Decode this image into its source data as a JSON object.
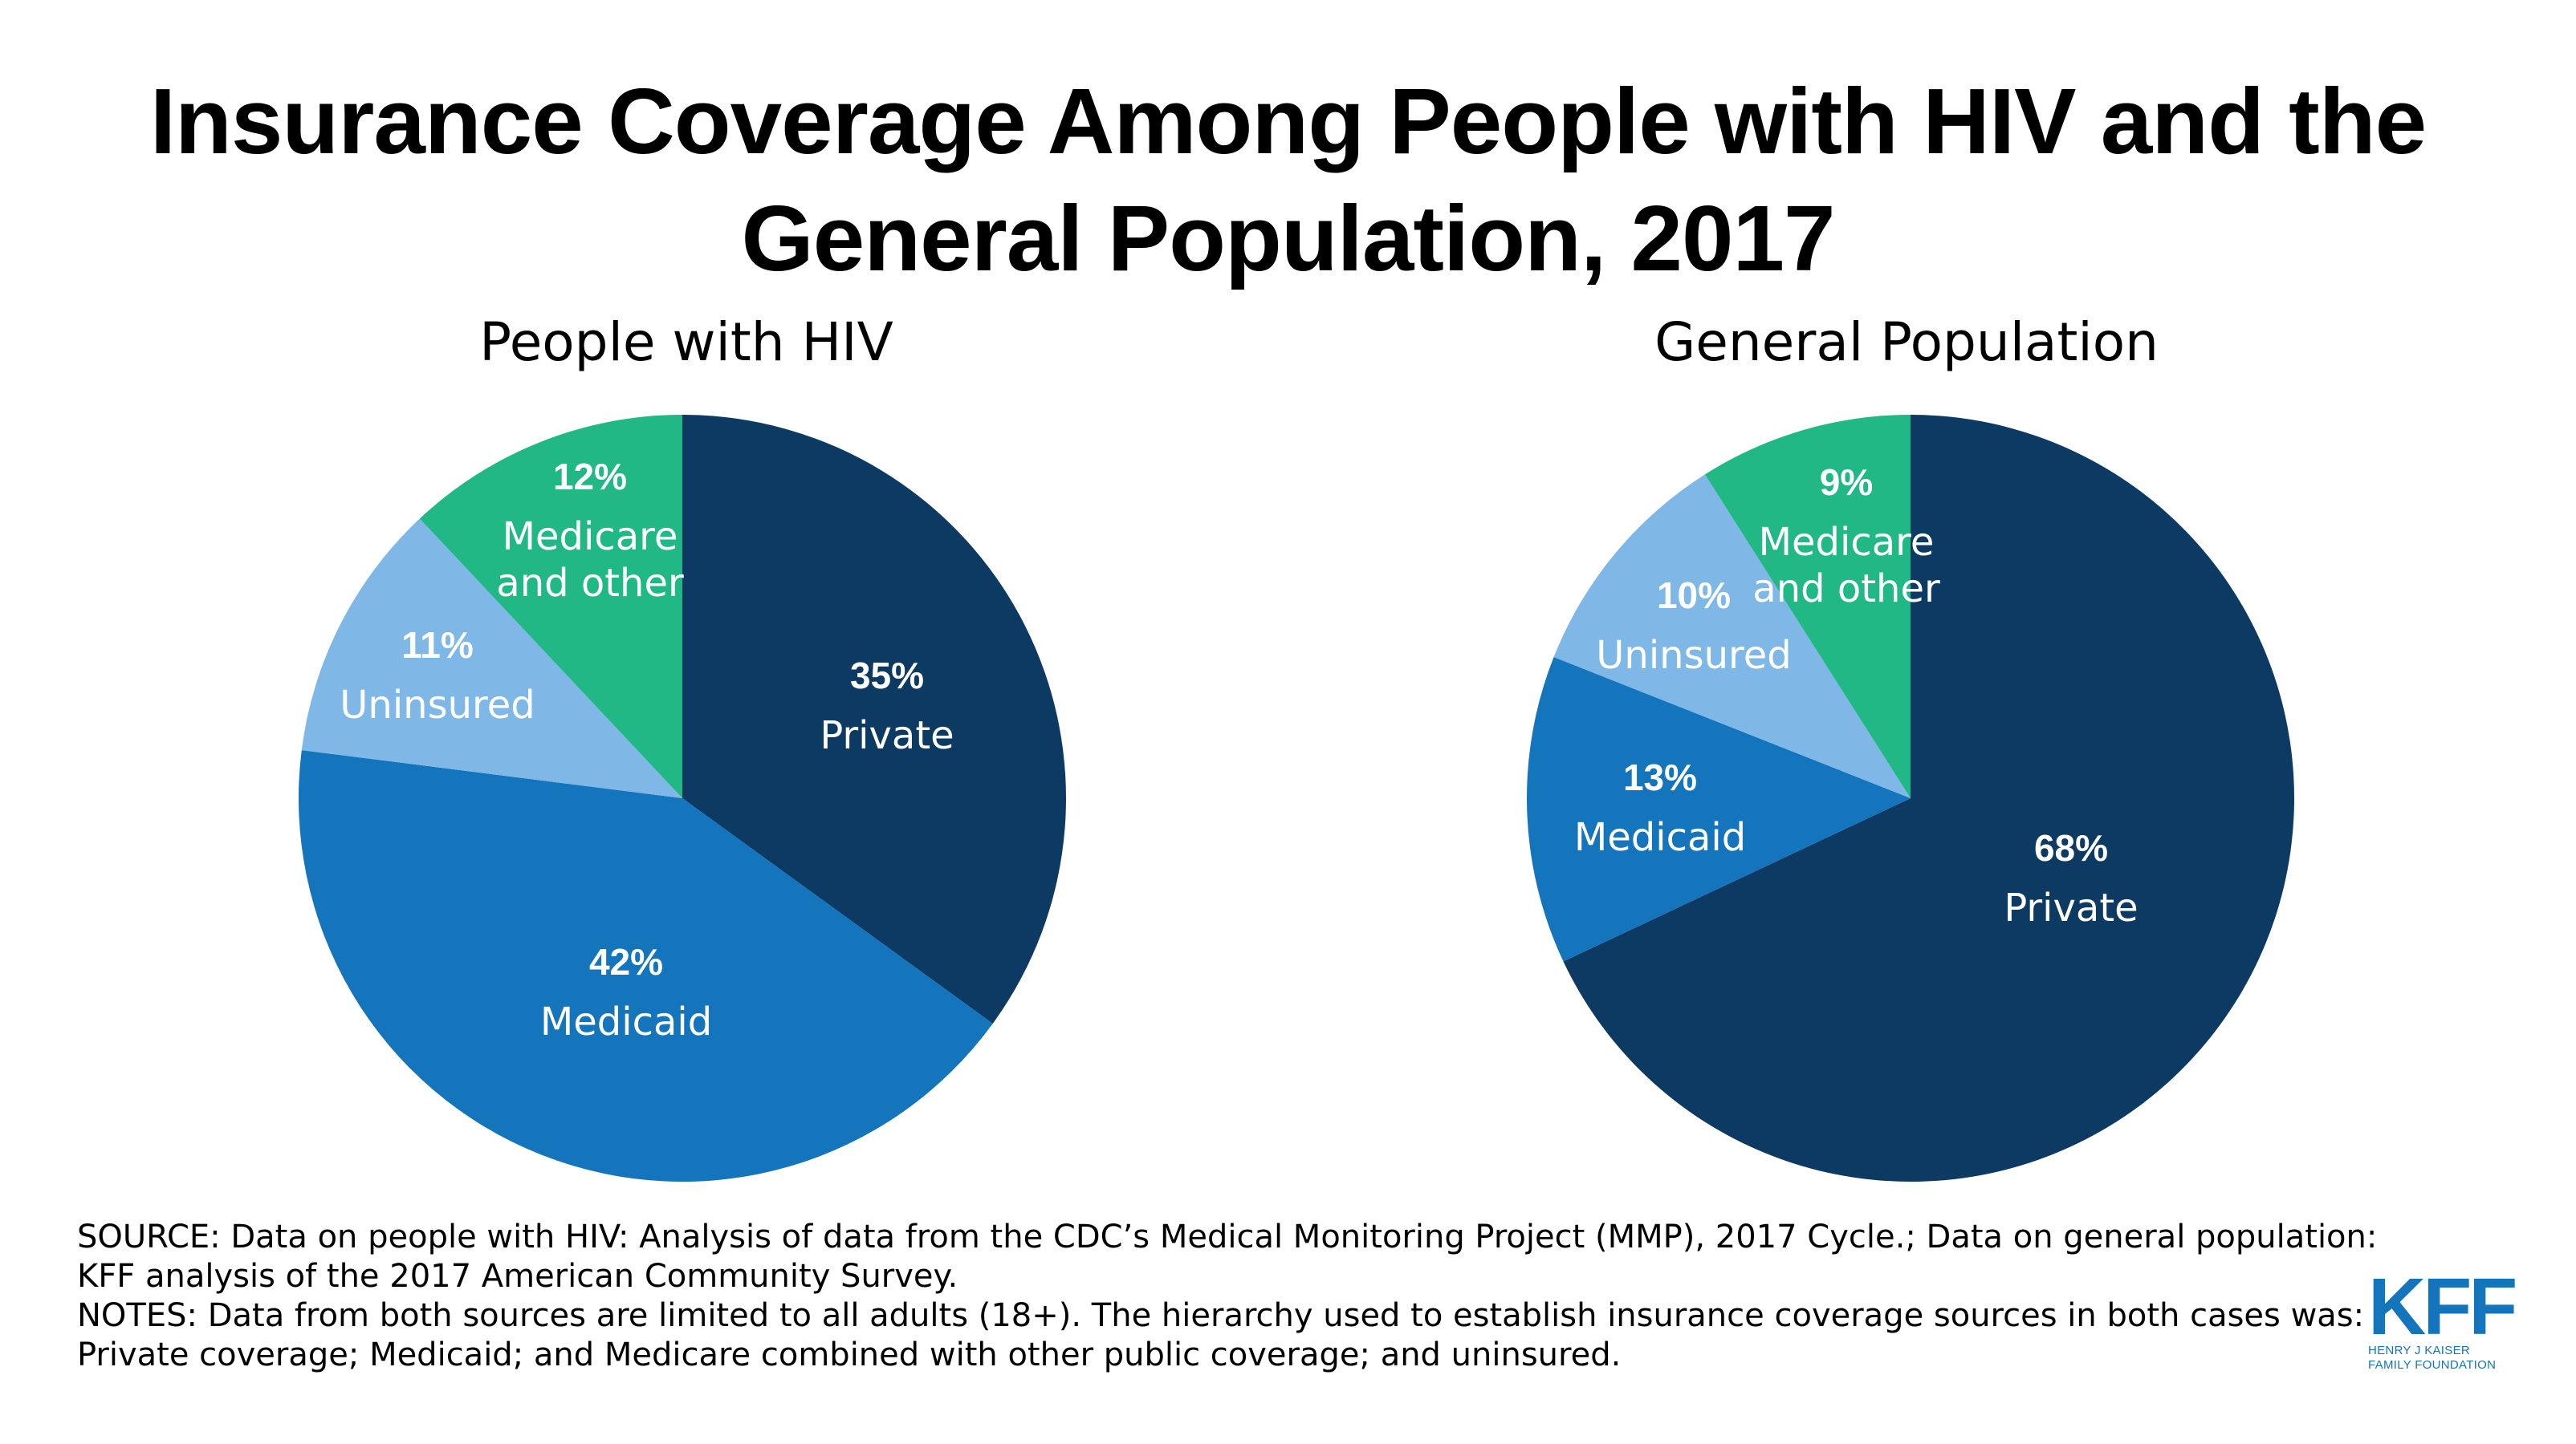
{
  "title": {
    "line1": "Insurance Coverage Among People with HIV and the",
    "line2": "General Population, 2017"
  },
  "chart_data": [
    {
      "type": "pie",
      "title": "People with HIV",
      "slices": [
        {
          "label": "Private",
          "value": 35,
          "pct_label": "35%",
          "color": "#0c3a63"
        },
        {
          "label": "Medicaid",
          "value": 42,
          "pct_label": "42%",
          "color": "#1475bd"
        },
        {
          "label": "Uninsured",
          "value": 11,
          "pct_label": "11%",
          "color": "#7fb8e6"
        },
        {
          "label_lines": [
            "Medicare",
            "and other"
          ],
          "value": 12,
          "pct_label": "12%",
          "color": "#22b886"
        }
      ]
    },
    {
      "type": "pie",
      "title": "General Population",
      "slices": [
        {
          "label": "Private",
          "value": 68,
          "pct_label": "68%",
          "color": "#0c3a63"
        },
        {
          "label": "Medicaid",
          "value": 13,
          "pct_label": "13%",
          "color": "#1475bd"
        },
        {
          "label": "Uninsured",
          "value": 10,
          "pct_label": "10%",
          "color": "#7fb8e6"
        },
        {
          "label_lines": [
            "Medicare",
            "and other"
          ],
          "value": 9,
          "pct_label": "9%",
          "color": "#22b886"
        }
      ]
    }
  ],
  "footnotes": {
    "line1": "SOURCE: Data on people with HIV: Analysis of data from the CDC’s Medical Monitoring Project (MMP), 2017 Cycle.; Data on general population:",
    "line2": "KFF analysis of the 2017 American Community Survey.",
    "line3": "NOTES: Data from both sources are limited to all adults (18+). The hierarchy used to establish insurance coverage sources in both cases was:",
    "line4": "Private coverage; Medicaid; and Medicare combined with other public coverage; and uninsured."
  },
  "logo": {
    "letters": "KFF",
    "line1": "HENRY J KAISER",
    "line2": "FAMILY FOUNDATION"
  }
}
